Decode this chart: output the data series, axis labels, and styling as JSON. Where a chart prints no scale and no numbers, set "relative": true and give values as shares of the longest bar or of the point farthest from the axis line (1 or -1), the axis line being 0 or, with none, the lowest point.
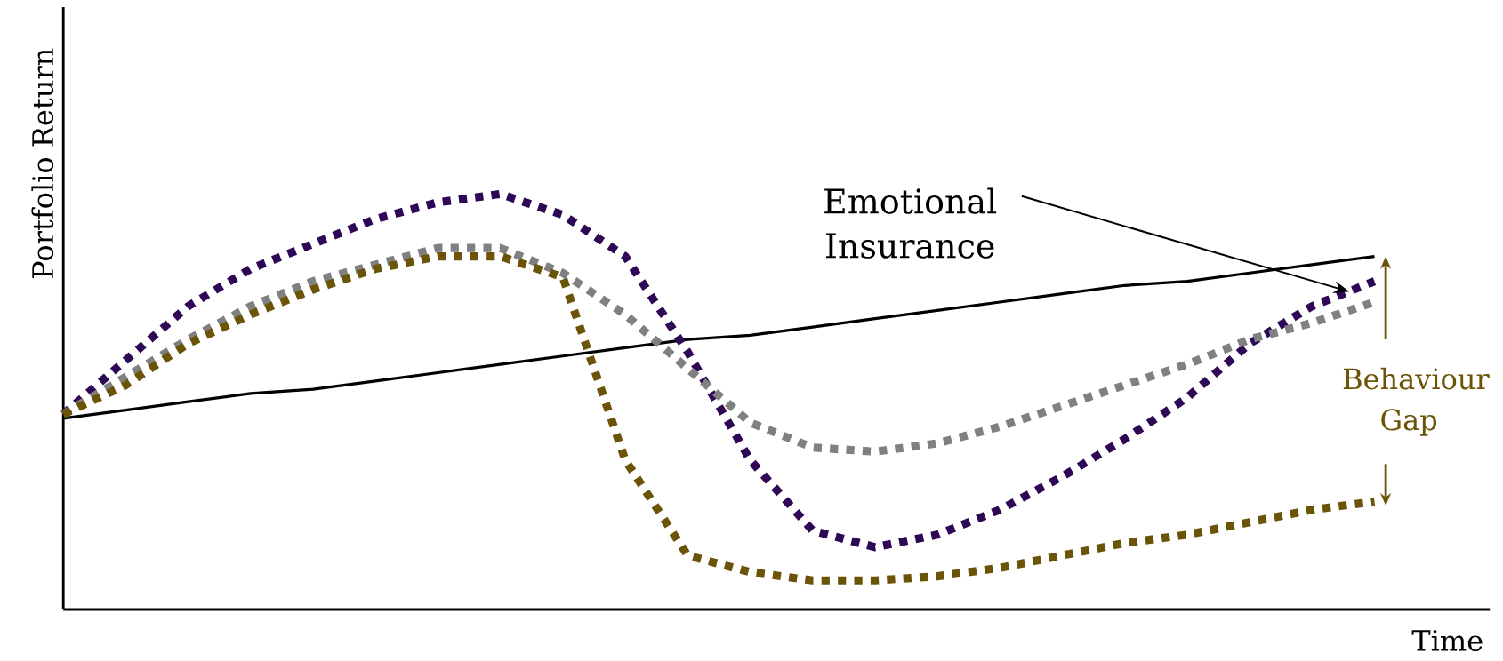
{
  "chart_data": {
    "type": "line",
    "relative": true,
    "xlabel": "Time",
    "ylabel": "Portfolio Return",
    "categories": [
      null,
      null,
      null,
      null,
      null,
      null,
      null,
      null,
      null,
      null,
      null,
      null,
      null,
      null,
      null,
      null,
      null,
      null,
      null,
      null,
      null,
      null
    ],
    "series": [
      {
        "color": "#000000",
        "line_style": "solid",
        "values": [
          0.46,
          0.48,
          0.5,
          0.52,
          0.53,
          0.55,
          0.57,
          0.59,
          0.61,
          0.63,
          0.65,
          0.66,
          0.68,
          0.7,
          0.72,
          0.74,
          0.76,
          0.78,
          0.79,
          0.81,
          0.83,
          0.85
        ]
      },
      {
        "color": "#2e0854",
        "line_style": "dotted",
        "values": [
          0.47,
          0.6,
          0.73,
          0.82,
          0.88,
          0.94,
          0.98,
          1.0,
          0.95,
          0.85,
          0.62,
          0.36,
          0.19,
          0.15,
          0.18,
          0.24,
          0.32,
          0.41,
          0.51,
          0.64,
          0.73,
          0.79
        ]
      },
      {
        "color": "#808080",
        "line_style": "dotted",
        "values": [
          0.47,
          0.56,
          0.65,
          0.73,
          0.79,
          0.83,
          0.87,
          0.87,
          0.81,
          0.71,
          0.58,
          0.45,
          0.39,
          0.38,
          0.4,
          0.44,
          0.49,
          0.54,
          0.59,
          0.65,
          0.69,
          0.74
        ]
      },
      {
        "color": "#6b5408",
        "line_style": "dotted",
        "values": [
          0.47,
          0.54,
          0.64,
          0.71,
          0.77,
          0.82,
          0.85,
          0.85,
          0.8,
          0.36,
          0.13,
          0.09,
          0.07,
          0.07,
          0.08,
          0.1,
          0.13,
          0.16,
          0.18,
          0.21,
          0.24,
          0.26
        ]
      }
    ],
    "annotations": [
      "Emotional Insurance",
      "Behaviour Gap"
    ],
    "marker": "none",
    "legend": false
  }
}
